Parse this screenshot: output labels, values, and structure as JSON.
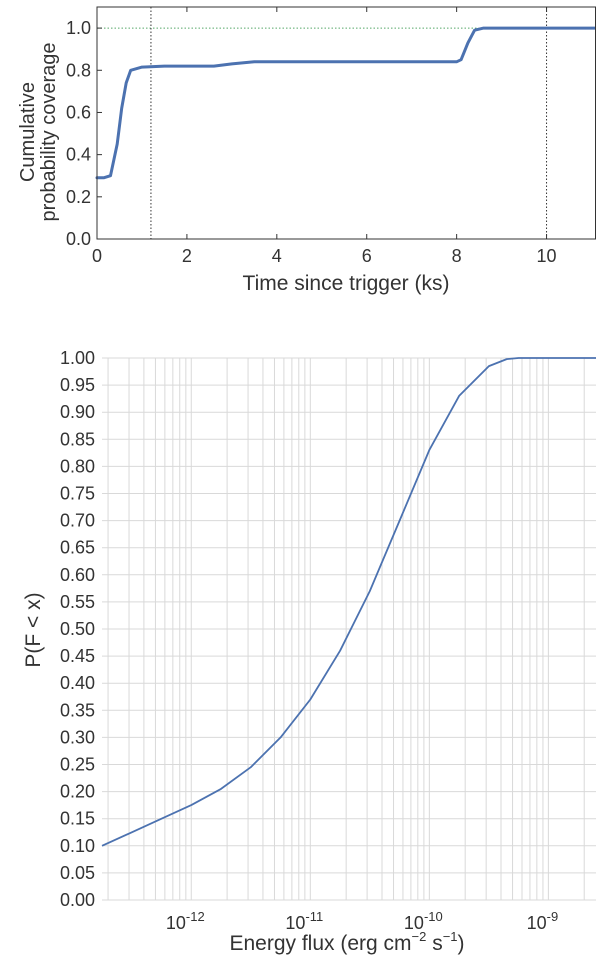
{
  "chart_data": [
    {
      "type": "line",
      "title": "",
      "xlabel": "Time since trigger (ks)",
      "ylabel_lines": [
        "Cumulative",
        "probability coverage"
      ],
      "xlim": [
        0,
        11.1
      ],
      "ylim": [
        0,
        1.1
      ],
      "xticks": [
        0,
        2,
        4,
        6,
        8,
        10
      ],
      "yticks": [
        0.0,
        0.2,
        0.4,
        0.6,
        0.8,
        1.0
      ],
      "ytick_labels": [
        "0.0",
        "0.2",
        "0.4",
        "0.6",
        "0.8",
        "1.0"
      ],
      "grid": false,
      "series": [
        {
          "color": "#4c72b0",
          "x": [
            0,
            0.15,
            0.3,
            0.45,
            0.55,
            0.65,
            0.75,
            1.0,
            1.5,
            2.0,
            2.6,
            3.0,
            3.5,
            4.5,
            6.0,
            7.0,
            8.0,
            8.1,
            8.25,
            8.4,
            8.6,
            9.0,
            10.0,
            11.1
          ],
          "y": [
            0.29,
            0.29,
            0.3,
            0.45,
            0.62,
            0.74,
            0.8,
            0.815,
            0.82,
            0.82,
            0.82,
            0.83,
            0.84,
            0.84,
            0.84,
            0.84,
            0.84,
            0.85,
            0.93,
            0.99,
            1.0,
            1.0,
            1.0,
            1.0
          ]
        }
      ],
      "reference_lines": {
        "vertical": [
          1.2,
          10.0
        ],
        "horizontal": [
          1.0
        ],
        "vertical_color": "#333333",
        "horizontal_color": "#55a868"
      }
    },
    {
      "type": "line",
      "title": "",
      "xlabel_main": "Energy flux (erg cm",
      "xlabel_sup1": "−2",
      "xlabel_mid": " s",
      "xlabel_sup2": "−1",
      "xlabel_end": ")",
      "ylabel": "P(F < x)",
      "xscale": "log",
      "xlim_log10": [
        -12.75,
        -8.6
      ],
      "ylim": [
        0.0,
        1.0
      ],
      "grid": true,
      "yticks": [
        0.0,
        0.05,
        0.1,
        0.15,
        0.2,
        0.25,
        0.3,
        0.35,
        0.4,
        0.45,
        0.5,
        0.55,
        0.6,
        0.65,
        0.7,
        0.75,
        0.8,
        0.85,
        0.9,
        0.95,
        1.0
      ],
      "ytick_labels": [
        "0.00",
        "0.05",
        "0.10",
        "0.15",
        "0.20",
        "0.25",
        "0.30",
        "0.35",
        "0.40",
        "0.45",
        "0.50",
        "0.55",
        "0.60",
        "0.65",
        "0.70",
        "0.75",
        "0.80",
        "0.85",
        "0.90",
        "0.95",
        "1.00"
      ],
      "xtick_exponents": [
        -12,
        -11,
        -10,
        -9
      ],
      "xtick_base": "10",
      "xtick_exp_labels": [
        "-12",
        "-11",
        "-10",
        "-9"
      ],
      "series": [
        {
          "color": "#4c72b0",
          "log10_x": [
            -12.75,
            -12.5,
            -12.25,
            -12.0,
            -11.75,
            -11.5,
            -11.25,
            -11.0,
            -10.75,
            -10.5,
            -10.25,
            -10.0,
            -9.75,
            -9.5,
            -9.35,
            -9.25,
            -9.1,
            -9.0,
            -8.6
          ],
          "y": [
            0.1,
            0.125,
            0.15,
            0.175,
            0.205,
            0.245,
            0.3,
            0.37,
            0.46,
            0.57,
            0.7,
            0.83,
            0.93,
            0.985,
            0.998,
            1.0,
            1.0,
            1.0,
            1.0
          ]
        }
      ]
    }
  ]
}
